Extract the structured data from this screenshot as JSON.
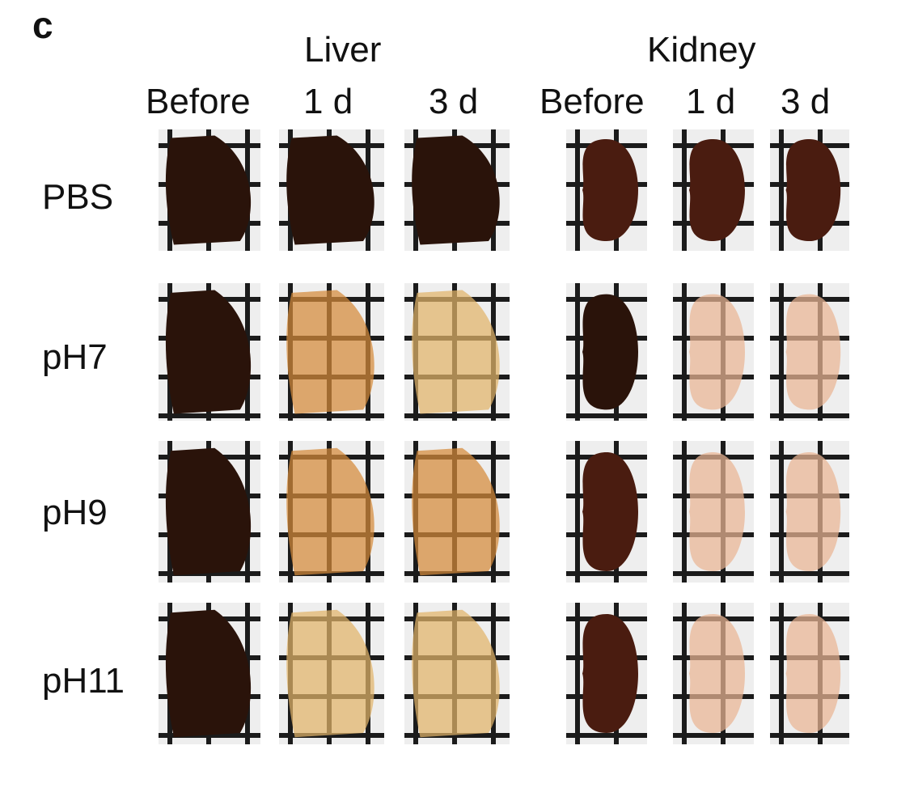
{
  "panel_label": "c",
  "groups": [
    "Liver",
    "Kidney"
  ],
  "columns": [
    "Before",
    "1 d",
    "3 d",
    "Before",
    "1 d",
    "3 d"
  ],
  "rows": [
    {
      "label": "PBS",
      "tissue": [
        "dark",
        "dark",
        "dark",
        "red-dark",
        "red-dark",
        "red-dark"
      ]
    },
    {
      "label": "pH7",
      "tissue": [
        "dark",
        "translucent-orange",
        "translucent-yellow",
        "dark",
        "translucent-pink",
        "translucent-pink"
      ]
    },
    {
      "label": "pH9",
      "tissue": [
        "dark",
        "translucent-orange",
        "translucent-orange",
        "red-dark",
        "translucent-pink",
        "translucent-pink"
      ]
    },
    {
      "label": "pH11",
      "tissue": [
        "dark",
        "translucent-yellow",
        "translucent-yellow",
        "red-dark",
        "translucent-pink",
        "translucent-pink"
      ]
    }
  ],
  "colors": {
    "dark": "#2a130a",
    "red-dark": "#4a1c10",
    "translucent-orange": "#d58a3a",
    "translucent-yellow": "#e2b46a",
    "translucent-pink": "#eab594",
    "grid": "#1b1b1b",
    "background": "#eeeeee"
  }
}
